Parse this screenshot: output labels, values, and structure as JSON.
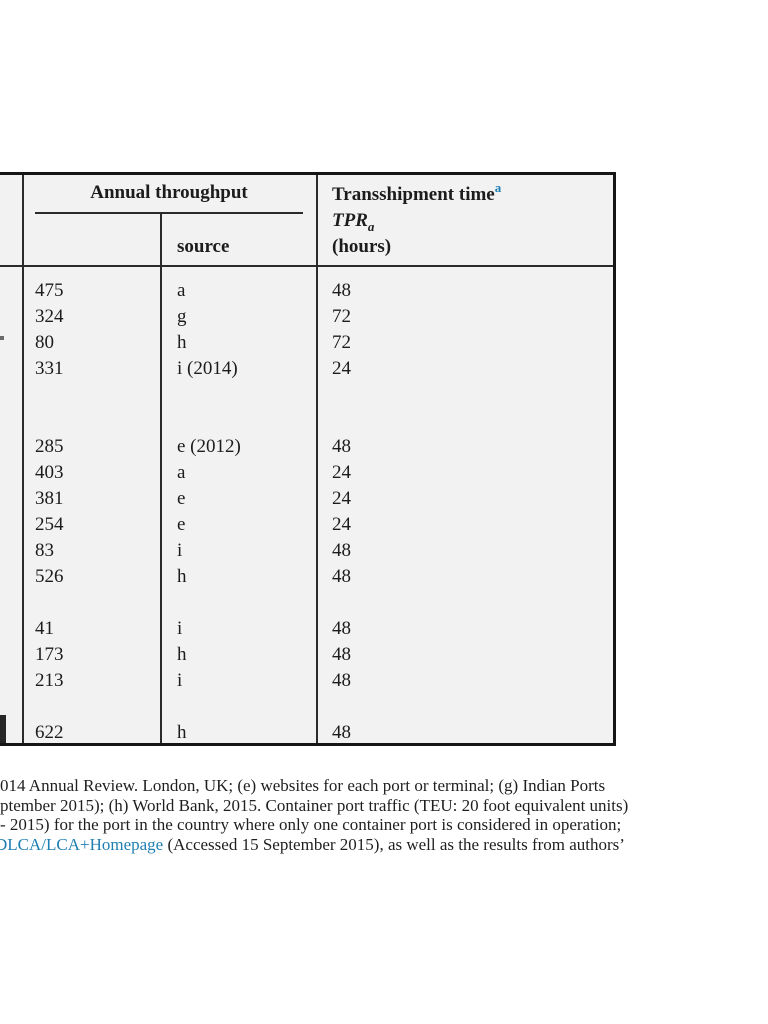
{
  "table": {
    "header": {
      "annual_throughput_label": "Annual throughput",
      "source_label": "source",
      "transshipment_label": "Transshipment time",
      "transshipment_footnote_marker": "a",
      "tpr_symbol": "TPR",
      "tpr_subscript": "a",
      "units_label": "(hours)"
    },
    "columns": [
      "annual_throughput_value",
      "annual_throughput_source",
      "transshipment_time_hours"
    ],
    "rows": [
      {
        "throughput": "475",
        "source": "a",
        "tpr": "48"
      },
      {
        "throughput": "324",
        "source": "g",
        "tpr": "72"
      },
      {
        "throughput": "80",
        "source": "h",
        "tpr": "72"
      },
      {
        "throughput": "331",
        "source": "i (2014)",
        "tpr": "24"
      },
      {
        "throughput": "",
        "source": "",
        "tpr": ""
      },
      {
        "throughput": "",
        "source": "",
        "tpr": ""
      },
      {
        "throughput": "285",
        "source": "e (2012)",
        "tpr": "48"
      },
      {
        "throughput": "403",
        "source": "a",
        "tpr": "24"
      },
      {
        "throughput": "381",
        "source": "e",
        "tpr": "24"
      },
      {
        "throughput": "254",
        "source": "e",
        "tpr": "24"
      },
      {
        "throughput": "83",
        "source": "i",
        "tpr": "48"
      },
      {
        "throughput": "526",
        "source": "h",
        "tpr": "48"
      },
      {
        "throughput": "",
        "source": "",
        "tpr": ""
      },
      {
        "throughput": "41",
        "source": "i",
        "tpr": "48"
      },
      {
        "throughput": "173",
        "source": "h",
        "tpr": "48"
      },
      {
        "throughput": "213",
        "source": "i",
        "tpr": "48"
      },
      {
        "throughput": "",
        "source": "",
        "tpr": ""
      },
      {
        "throughput": "622",
        "source": "h",
        "tpr": "48"
      }
    ]
  },
  "footnote": {
    "line1": "014 Annual Review. London, UK; (e) websites for each port or terminal; (g) Indian Ports",
    "line2": "ptember 2015); (h) World Bank, 2015. Container port traffic (TEU: 20 foot equivalent units)",
    "line3": "- 2015) for the port in the country where only one container port is considered in operation;",
    "line4_link": "DLCA/LCA+Homepage",
    "line4_rest": " (Accessed 15 September 2015), as well as the results from authors’"
  },
  "colors": {
    "table_background": "#f2f2f2",
    "border": "#161616",
    "accent_blue": "#1f7fb2"
  }
}
